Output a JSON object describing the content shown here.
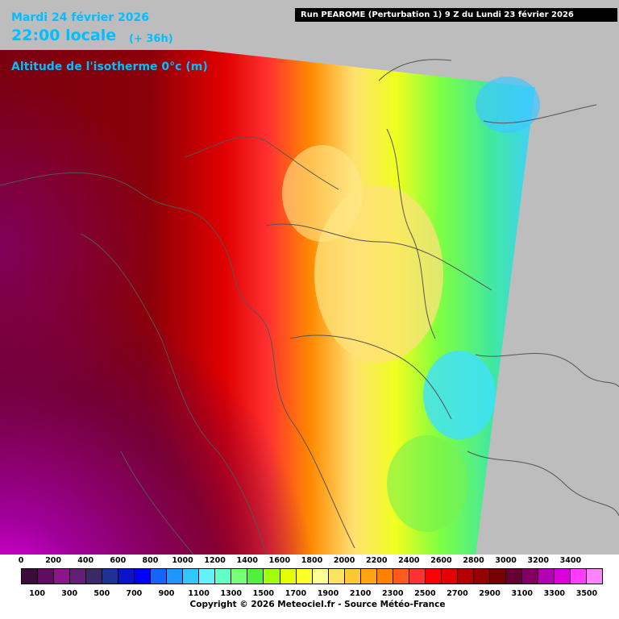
{
  "header": {
    "date": "Mardi 24 février 2026",
    "time": "22:00 locale",
    "lead": "(+ 36h)",
    "parameter": "Altitude de l'isotherme 0°c (m)"
  },
  "run_banner": "Run PEAROME (Perturbation 1) 9 Z du Lundi 23 février 2026",
  "legend": {
    "top_labels": [
      "0",
      "200",
      "400",
      "600",
      "800",
      "1000",
      "1200",
      "1400",
      "1600",
      "1800",
      "2000",
      "2200",
      "2400",
      "2600",
      "2800",
      "3000",
      "3200",
      "3400"
    ],
    "bottom_labels": [
      "100",
      "300",
      "500",
      "700",
      "900",
      "1100",
      "1300",
      "1500",
      "1700",
      "1900",
      "2100",
      "2300",
      "2500",
      "2700",
      "2900",
      "3100",
      "3300",
      "3500"
    ],
    "colors": [
      "#3c0a3c",
      "#640a64",
      "#8c148c",
      "#641e78",
      "#3c2864",
      "#1e3296",
      "#0a14c8",
      "#0000ff",
      "#1464ff",
      "#1e96ff",
      "#32c8ff",
      "#64f0ff",
      "#64ffc8",
      "#78ff78",
      "#50f03c",
      "#a0ff0a",
      "#e6ff00",
      "#ffff28",
      "#ffff96",
      "#ffe164",
      "#ffc832",
      "#ffa514",
      "#ff8200",
      "#ff5a1e",
      "#ff3232",
      "#ff0000",
      "#e60000",
      "#b40000",
      "#960000",
      "#780000",
      "#640032",
      "#820064",
      "#b400b4",
      "#dc00dc",
      "#ff3cff",
      "#ff82ff"
    ]
  },
  "copyright": "Copyright © 2026 Meteociel.fr - Source Météo-France"
}
